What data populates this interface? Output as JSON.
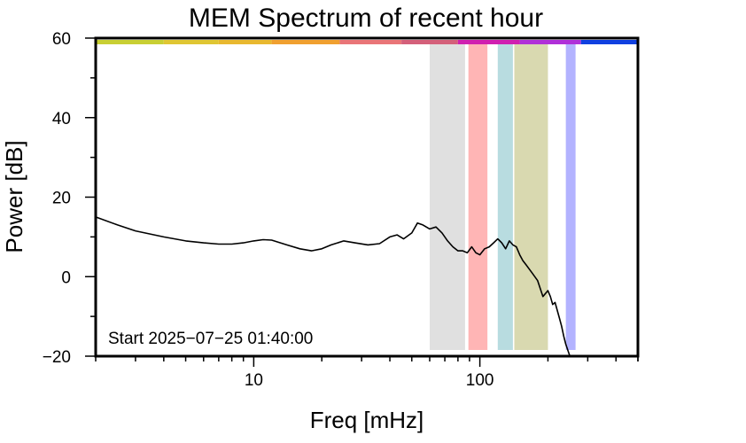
{
  "chart_data": {
    "type": "line",
    "title": "MEM Spectrum of recent hour",
    "xlabel": "Freq [mHz]",
    "ylabel": "Power [dB]",
    "x_scale": "log",
    "xlim": [
      2,
      500
    ],
    "ylim": [
      -20,
      60
    ],
    "x_ticks": [
      10,
      100
    ],
    "x_tick_labels": [
      "10",
      "100"
    ],
    "y_ticks": [
      -20,
      0,
      20,
      40,
      60
    ],
    "y_tick_labels": [
      "−20",
      "0",
      "20",
      "40",
      "60"
    ],
    "annotation": "Start 2025−07−25 01:40:00",
    "grid": false,
    "series": [
      {
        "color": "#000000",
        "x": [
          2,
          2.5,
          3,
          4,
          5,
          6,
          7,
          8,
          9,
          10,
          11,
          12,
          14,
          16,
          18,
          20,
          22,
          25,
          28,
          32,
          36,
          40,
          43,
          46,
          50,
          53,
          56,
          60,
          64,
          68,
          72,
          76,
          80,
          84,
          88,
          92,
          96,
          100,
          105,
          110,
          115,
          120,
          125,
          130,
          135,
          140,
          145,
          150,
          155,
          160,
          170,
          180,
          190,
          200,
          205,
          210,
          215,
          220,
          225,
          230,
          235,
          240,
          245,
          250
        ],
        "y": [
          15,
          13,
          11.5,
          10,
          9,
          8.5,
          8.2,
          8.2,
          8.5,
          9,
          9.3,
          9.2,
          8,
          7,
          6.5,
          7,
          8,
          9,
          8.5,
          8,
          8.3,
          10,
          10.5,
          9.5,
          11,
          13.5,
          13,
          12,
          12.5,
          11,
          9,
          7.5,
          6.5,
          6.5,
          6,
          7.5,
          6,
          5.5,
          7,
          7.5,
          8.5,
          9.5,
          8.5,
          7,
          9,
          8,
          7.5,
          5.5,
          4,
          3,
          1,
          -1,
          -5,
          -3.5,
          -5,
          -7,
          -6.5,
          -8.5,
          -10.5,
          -12.5,
          -15,
          -17,
          -18.5,
          -20
        ]
      }
    ],
    "bands": [
      {
        "x0": 60,
        "x1": 86,
        "color": "#e0e0e0"
      },
      {
        "x0": 89,
        "x1": 108,
        "color": "#ffb5b5"
      },
      {
        "x0": 120,
        "x1": 140,
        "color": "#b8dce0"
      },
      {
        "x0": 142,
        "x1": 200,
        "color": "#d9d9b0"
      },
      {
        "x0": 240,
        "x1": 265,
        "color": "#b3b3ff"
      }
    ],
    "top_strip": [
      {
        "x0": 2,
        "x1": 4,
        "color": "#c8cf34"
      },
      {
        "x0": 4,
        "x1": 7,
        "color": "#dfc633"
      },
      {
        "x0": 7,
        "x1": 12,
        "color": "#e8b830"
      },
      {
        "x0": 12,
        "x1": 24,
        "color": "#f0a030"
      },
      {
        "x0": 24,
        "x1": 45,
        "color": "#e97578"
      },
      {
        "x0": 45,
        "x1": 80,
        "color": "#d4607a"
      },
      {
        "x0": 80,
        "x1": 150,
        "color": "#d020b0"
      },
      {
        "x0": 150,
        "x1": 280,
        "color": "#b030d8"
      },
      {
        "x0": 280,
        "x1": 500,
        "color": "#1040e0"
      }
    ]
  }
}
